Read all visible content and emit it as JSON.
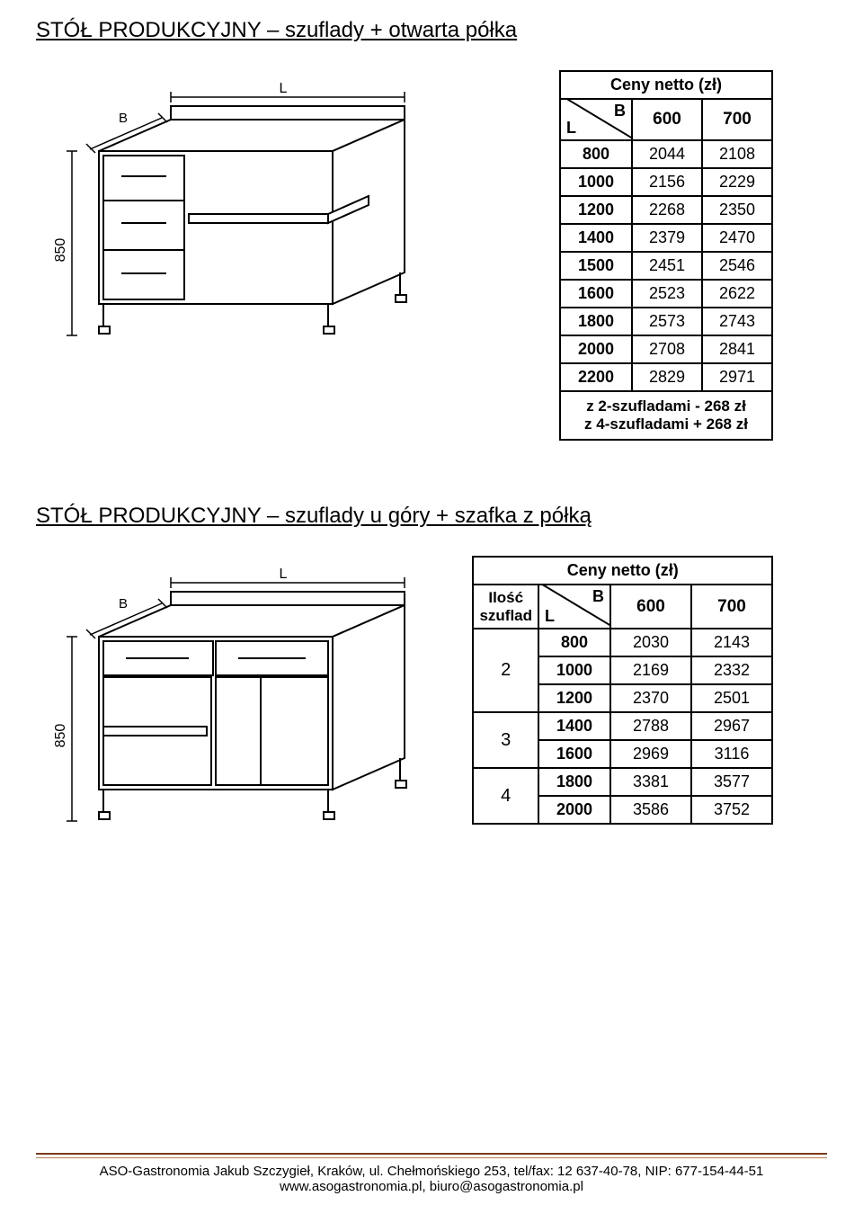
{
  "section1": {
    "title": "STÓŁ PRODUKCYJNY – szuflady + otwarta półka",
    "table": {
      "caption": "Ceny netto (zł)",
      "axis_B": "B",
      "axis_L": "L",
      "col_headers": [
        "600",
        "700"
      ],
      "rows": [
        {
          "L": "800",
          "v": [
            "2044",
            "2108"
          ]
        },
        {
          "L": "1000",
          "v": [
            "2156",
            "2229"
          ]
        },
        {
          "L": "1200",
          "v": [
            "2268",
            "2350"
          ]
        },
        {
          "L": "1400",
          "v": [
            "2379",
            "2470"
          ]
        },
        {
          "L": "1500",
          "v": [
            "2451",
            "2546"
          ]
        },
        {
          "L": "1600",
          "v": [
            "2523",
            "2622"
          ]
        },
        {
          "L": "1800",
          "v": [
            "2573",
            "2743"
          ]
        },
        {
          "L": "2000",
          "v": [
            "2708",
            "2841"
          ]
        },
        {
          "L": "2200",
          "v": [
            "2829",
            "2971"
          ]
        }
      ],
      "note1": "z 2-szufladami - 268 zł",
      "note2": "z 4-szufladami + 268 zł"
    },
    "diagram": {
      "dim_L": "L",
      "dim_H": "850",
      "dim_B": "B"
    }
  },
  "section2": {
    "title": "STÓŁ PRODUKCYJNY – szuflady u góry + szafka z półką",
    "table": {
      "caption": "Ceny netto (zł)",
      "ilos_label_1": "Ilość",
      "ilos_label_2": "szuflad",
      "axis_B": "B",
      "axis_L": "L",
      "col_headers": [
        "600",
        "700"
      ],
      "groups": [
        {
          "qty": "2",
          "rows": [
            {
              "L": "800",
              "v": [
                "2030",
                "2143"
              ]
            },
            {
              "L": "1000",
              "v": [
                "2169",
                "2332"
              ]
            },
            {
              "L": "1200",
              "v": [
                "2370",
                "2501"
              ]
            }
          ]
        },
        {
          "qty": "3",
          "rows": [
            {
              "L": "1400",
              "v": [
                "2788",
                "2967"
              ]
            },
            {
              "L": "1600",
              "v": [
                "2969",
                "3116"
              ]
            }
          ]
        },
        {
          "qty": "4",
          "rows": [
            {
              "L": "1800",
              "v": [
                "3381",
                "3577"
              ]
            },
            {
              "L": "2000",
              "v": [
                "3586",
                "3752"
              ]
            }
          ]
        }
      ]
    },
    "diagram": {
      "dim_L": "L",
      "dim_H": "850",
      "dim_B": "B"
    }
  },
  "footer": {
    "line1": "ASO-Gastronomia Jakub Szczygieł, Kraków, ul. Chełmońskiego 253, tel/fax: 12 637-40-78, NIP: 677-154-44-51",
    "line2": "www.asogastronomia.pl, biuro@asogastronomia.pl"
  },
  "style": {
    "border_color": "#000000",
    "text_color": "#000000",
    "rule_color_dark": "#7a3c1a",
    "rule_color_light": "#b87c4c"
  }
}
